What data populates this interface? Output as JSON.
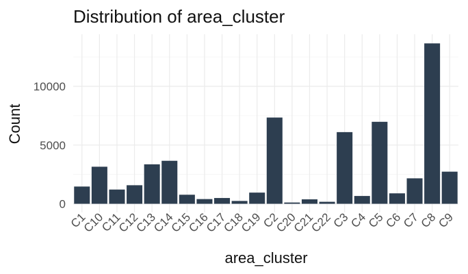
{
  "chart_data": {
    "type": "bar",
    "title": "Distribution of area_cluster",
    "xlabel": "area_cluster",
    "ylabel": "Count",
    "categories": [
      "C1",
      "C10",
      "C11",
      "C12",
      "C13",
      "C14",
      "C15",
      "C16",
      "C17",
      "C18",
      "C19",
      "C2",
      "C20",
      "C21",
      "C22",
      "C3",
      "C4",
      "C5",
      "C6",
      "C7",
      "C8",
      "C9"
    ],
    "values": [
      1468,
      3155,
      1212,
      1580,
      3360,
      3660,
      771,
      401,
      492,
      242,
      952,
      7342,
      109,
      379,
      170,
      6101,
      665,
      6979,
      890,
      2167,
      13654,
      2734
    ],
    "ylim": [
      0,
      14300
    ],
    "yticks": [
      0,
      5000,
      10000
    ],
    "ytick_labels": [
      "0",
      "5000",
      "10000"
    ],
    "bar_color": "#2d3e50",
    "grid": true,
    "legend": "none"
  }
}
